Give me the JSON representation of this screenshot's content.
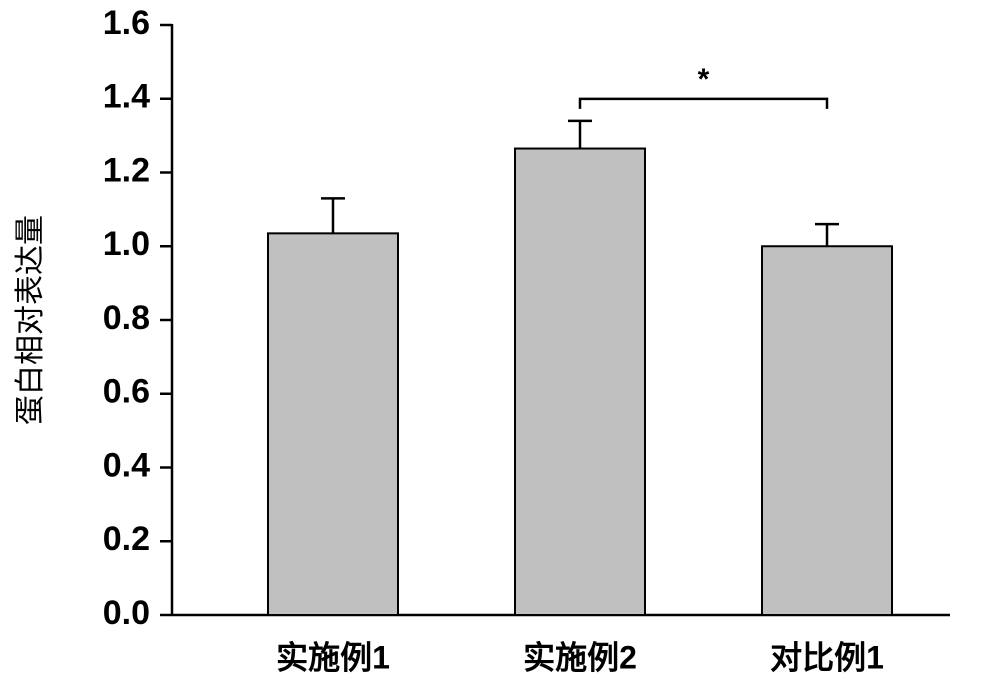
{
  "chart_data": {
    "type": "bar",
    "ylabel": "蛋白相对表达量",
    "categories": [
      "实施例1",
      "实施例2",
      "对比例1"
    ],
    "values": [
      1.035,
      1.265,
      1.0
    ],
    "errors": [
      0.095,
      0.075,
      0.06
    ],
    "color": "#c0c0c0",
    "ylim": [
      0,
      1.6
    ],
    "yticks": [
      {
        "value": 0,
        "label": "0.0"
      },
      0.2,
      0.4,
      0.6,
      0.8,
      {
        "value": 1,
        "label": "1.0"
      },
      1.2,
      1.4,
      1.6
    ],
    "significance": [
      {
        "label": "*",
        "between": [
          "实施例2",
          "对比例1"
        ]
      }
    ]
  }
}
